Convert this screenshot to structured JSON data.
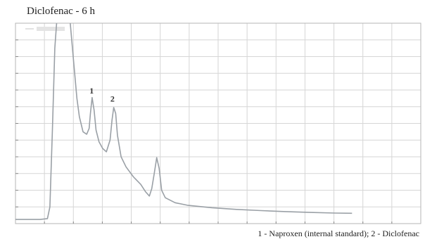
{
  "chart_data": {
    "type": "line",
    "title": "Diclofenac - 6 h",
    "caption": "1 - Naproxen (internal standard); 2 - Diclofenac",
    "xlabel": "",
    "ylabel": "",
    "grid": true,
    "xlim": [
      0,
      16.5
    ],
    "ylim": [
      0,
      12
    ],
    "series": [
      {
        "color": "#9aa0a6",
        "points": [
          [
            0.0,
            0.25
          ],
          [
            0.5,
            0.25
          ],
          [
            1.0,
            0.25
          ],
          [
            1.3,
            0.3
          ],
          [
            1.4,
            1.0
          ],
          [
            1.5,
            5.5
          ],
          [
            1.6,
            10.5
          ],
          [
            1.7,
            12.5
          ],
          [
            2.0,
            12.5
          ],
          [
            2.2,
            12.5
          ],
          [
            2.35,
            10.0
          ],
          [
            2.5,
            7.5
          ],
          [
            2.6,
            6.4
          ],
          [
            2.75,
            5.5
          ],
          [
            2.9,
            5.35
          ],
          [
            3.0,
            5.7
          ],
          [
            3.05,
            6.6
          ],
          [
            3.12,
            7.55
          ],
          [
            3.2,
            6.8
          ],
          [
            3.28,
            5.6
          ],
          [
            3.4,
            4.9
          ],
          [
            3.55,
            4.5
          ],
          [
            3.7,
            4.3
          ],
          [
            3.85,
            5.0
          ],
          [
            3.93,
            6.2
          ],
          [
            4.0,
            6.95
          ],
          [
            4.08,
            6.6
          ],
          [
            4.15,
            5.3
          ],
          [
            4.3,
            4.0
          ],
          [
            4.5,
            3.4
          ],
          [
            4.8,
            2.8
          ],
          [
            5.1,
            2.35
          ],
          [
            5.3,
            1.9
          ],
          [
            5.45,
            1.65
          ],
          [
            5.55,
            2.1
          ],
          [
            5.65,
            3.0
          ],
          [
            5.75,
            3.95
          ],
          [
            5.85,
            3.3
          ],
          [
            5.95,
            2.0
          ],
          [
            6.1,
            1.55
          ],
          [
            6.5,
            1.25
          ],
          [
            7.0,
            1.1
          ],
          [
            8.0,
            0.95
          ],
          [
            9.0,
            0.85
          ],
          [
            10.0,
            0.78
          ],
          [
            11.0,
            0.72
          ],
          [
            12.0,
            0.67
          ],
          [
            13.0,
            0.63
          ],
          [
            13.7,
            0.62
          ]
        ]
      }
    ],
    "annotations": [
      {
        "text": "1",
        "x": 3.1,
        "y": 7.8
      },
      {
        "text": "2",
        "x": 3.95,
        "y": 7.3
      }
    ]
  }
}
